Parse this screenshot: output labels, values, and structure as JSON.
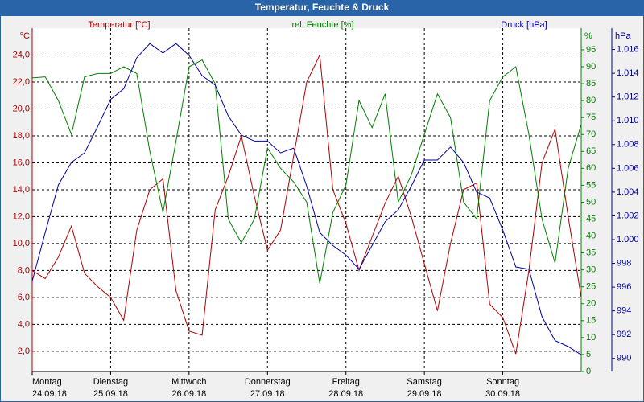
{
  "chart_data": {
    "type": "line",
    "title": "Temperatur, Feuchte & Druck",
    "x": [
      0,
      4,
      8,
      12,
      16,
      20,
      24,
      28,
      32,
      36,
      40,
      44,
      48,
      52,
      56,
      60,
      64,
      68,
      72,
      76,
      80,
      84,
      88,
      92,
      96,
      100,
      104,
      108,
      112,
      116,
      120,
      124,
      128,
      132,
      136,
      140,
      144,
      148,
      152,
      156,
      160,
      164,
      168
    ],
    "xlim": [
      0,
      168
    ],
    "xticks": [
      {
        "value": 0,
        "label": "Montag",
        "date": "24.09.18"
      },
      {
        "value": 24,
        "label": "Dienstag",
        "date": "25.09.18"
      },
      {
        "value": 48,
        "label": "Mittwoch",
        "date": "26.09.18"
      },
      {
        "value": 72,
        "label": "Donnerstag",
        "date": "27.09.18"
      },
      {
        "value": 96,
        "label": "Freitag",
        "date": "28.09.18"
      },
      {
        "value": 120,
        "label": "Samstag",
        "date": "29.09.18"
      },
      {
        "value": 144,
        "label": "Sonntag",
        "date": "30.09.18"
      }
    ],
    "grid": true,
    "y_unit": "°C",
    "y2_unit": "%",
    "y3_unit": "hPa",
    "ylim": [
      0.5,
      26
    ],
    "yticks": [
      {
        "value": 2,
        "label": "2,0"
      },
      {
        "value": 4,
        "label": "4,0"
      },
      {
        "value": 6,
        "label": "6,0"
      },
      {
        "value": 8,
        "label": "8,0"
      },
      {
        "value": 10,
        "label": "10,0"
      },
      {
        "value": 12,
        "label": "12,0"
      },
      {
        "value": 14,
        "label": "14,0"
      },
      {
        "value": 16,
        "label": "16,0"
      },
      {
        "value": 18,
        "label": "18,0"
      },
      {
        "value": 20,
        "label": "20,0"
      },
      {
        "value": 22,
        "label": "22,0"
      },
      {
        "value": 24,
        "label": "24,0"
      }
    ],
    "y2lim": [
      0,
      101.4
    ],
    "y2ticks": [
      0,
      5,
      10,
      15,
      20,
      25,
      30,
      35,
      40,
      45,
      50,
      55,
      60,
      65,
      70,
      75,
      80,
      85,
      90,
      95
    ],
    "y3lim": [
      988.9,
      1017.8
    ],
    "y3ticks": [
      990,
      992,
      994,
      996,
      998,
      {
        "value": 1000,
        "label": "1.000"
      },
      {
        "value": 1002,
        "label": "1.002"
      },
      {
        "value": 1004,
        "label": "1.004"
      },
      {
        "value": 1006,
        "label": "1.006"
      },
      {
        "value": 1008,
        "label": "1.008"
      },
      {
        "value": 1010,
        "label": "1.010"
      },
      {
        "value": 1012,
        "label": "1.012"
      },
      {
        "value": 1014,
        "label": "1.014"
      },
      {
        "value": 1016,
        "label": "1.016"
      }
    ],
    "series": [
      {
        "name": "Temperatur [°C]",
        "color": "#b00000",
        "axis": "y",
        "values": [
          8.0,
          7.4,
          9.0,
          11.3,
          7.8,
          6.8,
          6.0,
          4.3,
          11.0,
          14.0,
          14.8,
          6.5,
          3.5,
          3.2,
          12.5,
          15.0,
          18.0,
          13.5,
          9.5,
          11.0,
          16.5,
          22.0,
          24.0,
          14.0,
          11.5,
          8.0,
          10.5,
          13.0,
          15.0,
          12.0,
          8.5,
          5.0,
          10.0,
          14.0,
          14.5,
          5.5,
          4.5,
          1.8,
          8.0,
          16.0,
          18.5,
          12.0,
          6.0
        ]
      },
      {
        "name": "rel. Feuchte [%]",
        "color": "#008000",
        "axis": "y2",
        "values": [
          86.7,
          87,
          80,
          70,
          87,
          88,
          88,
          90,
          88,
          65,
          47,
          68,
          90,
          92,
          85,
          45,
          38,
          45,
          66,
          60,
          56,
          50,
          26,
          47,
          55,
          80,
          72,
          82,
          50,
          58,
          70,
          82,
          75,
          50,
          45,
          80,
          87,
          90,
          70,
          45,
          32,
          60,
          73
        ]
      },
      {
        "name": "Druck [hPa]",
        "color": "#0000a0",
        "axis": "y3",
        "values": [
          996.5,
          1000.6,
          1004.6,
          1006.5,
          1007.3,
          1009.5,
          1011.8,
          1012.7,
          1015.3,
          1016.5,
          1015.7,
          1016.5,
          1015.5,
          1013.8,
          1013,
          1010.4,
          1008.8,
          1008.3,
          1008.3,
          1007.3,
          1007.7,
          1004.5,
          1000.6,
          999.5,
          998.7,
          997.5,
          999.5,
          1001.5,
          1002.5,
          1004.5,
          1006.7,
          1006.7,
          1007.8,
          1006.5,
          1004,
          1003.5,
          1000.8,
          997.7,
          997.5,
          993.5,
          991.5,
          991,
          990.3
        ]
      }
    ]
  }
}
